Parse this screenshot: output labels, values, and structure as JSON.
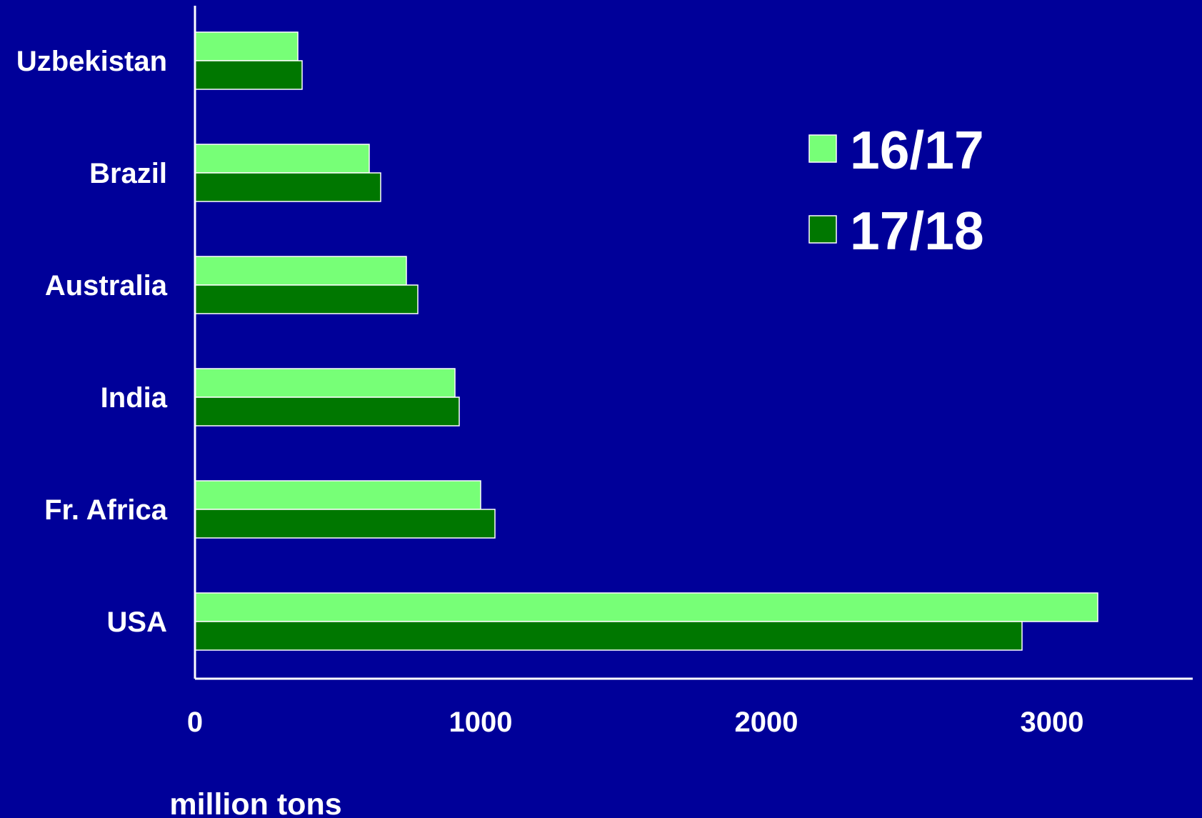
{
  "chart_data": {
    "type": "bar",
    "orientation": "horizontal",
    "categories": [
      "Uzbekistan",
      "Brazil",
      "Australia",
      "India",
      "Fr. Africa",
      "USA"
    ],
    "series": [
      {
        "name": "16/17",
        "color": "#77ff77",
        "values": [
          360,
          610,
          740,
          910,
          1000,
          3160
        ]
      },
      {
        "name": "17/18",
        "color": "#007700",
        "values": [
          375,
          650,
          780,
          925,
          1050,
          2895
        ]
      }
    ],
    "xticks": [
      "0",
      "1000",
      "2000",
      "3000"
    ],
    "xlabel": "million tons",
    "xlim": [
      0,
      3500
    ],
    "grid": false,
    "legend_position": "top-right",
    "background_color": "#000099",
    "axis_color": "#ffffff",
    "text_color": "#ffffff"
  }
}
